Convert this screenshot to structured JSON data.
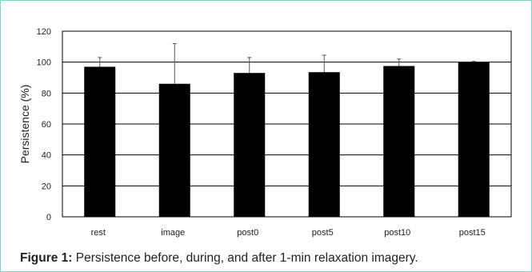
{
  "caption": {
    "label": "Figure 1:",
    "text": " Persistence before, during, and after 1-min relaxation imagery."
  },
  "colors": {
    "bar": "#000000",
    "frame": "#7fd3ca",
    "grid": "#000000"
  },
  "chart_data": {
    "type": "bar",
    "title": "",
    "xlabel": "",
    "ylabel": "Persistence (%)",
    "ylim": [
      0,
      120
    ],
    "yticks": [
      0,
      20,
      40,
      60,
      80,
      100,
      120
    ],
    "grid": true,
    "legend": "none",
    "categories": [
      "rest",
      "image",
      "post0",
      "post5",
      "post10",
      "post15"
    ],
    "values": [
      97,
      86,
      93,
      93.5,
      97.5,
      100
    ],
    "error_upper": [
      6,
      26,
      10,
      11,
      4.5,
      0.5
    ]
  }
}
